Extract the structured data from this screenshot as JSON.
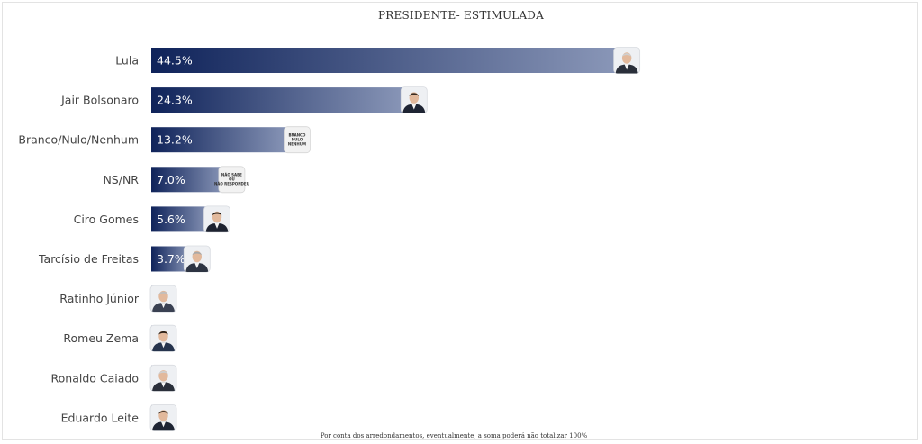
{
  "chart_data": {
    "type": "bar",
    "orientation": "horizontal",
    "title": "PRESIDENTE- ESTIMULADA",
    "categories": [
      "Lula",
      "Jair Bolsonaro",
      "Branco/Nulo/Nenhum",
      "NS/NR",
      "Ciro Gomes",
      "Tarcísio de Freitas",
      "Ratinho Júnior",
      "Romeu Zema",
      "Ronaldo Caiado",
      "Eduardo Leite"
    ],
    "values": [
      44.5,
      24.3,
      13.2,
      7.0,
      5.6,
      3.7,
      0.3,
      0.3,
      0.3,
      0
    ],
    "value_labels": [
      "44.5%",
      "24.3%",
      "13.2%",
      "7.0%",
      "5.6%",
      "3.7%",
      "",
      "",
      "",
      ""
    ],
    "xlim": [
      0,
      100
    ],
    "grid": false,
    "legend": "none",
    "colors": {
      "bar_dark": "#0f235a",
      "bar_light": "#8a97b8"
    },
    "markers": [
      "photo",
      "photo",
      "badge",
      "badge",
      "photo",
      "photo",
      "photo",
      "photo",
      "photo",
      "photo"
    ],
    "badges": {
      "Branco/Nulo/Nenhum": [
        "BRANCO",
        "NULO",
        "NENHUM"
      ],
      "NS/NR": [
        "NÃO SABE",
        "OU",
        "NÃO RESPONDEU"
      ]
    }
  },
  "footnote": "Por conta dos arredondamentos, eventualmente, a soma poderá não totalizar 100%"
}
